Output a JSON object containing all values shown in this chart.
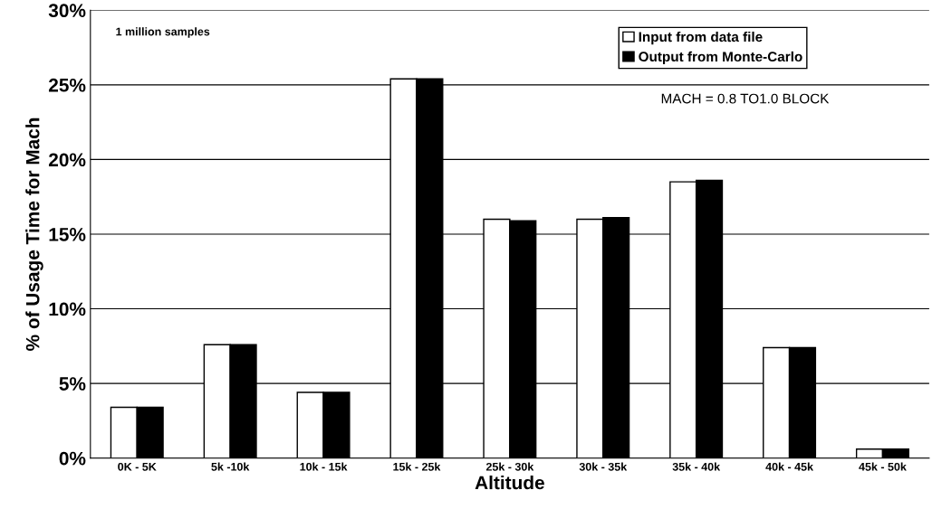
{
  "chart_data": {
    "type": "bar",
    "xlabel": "Altitude",
    "ylabel": "% of Usage Time for Mach",
    "categories": [
      "0K - 5K",
      "5k -10k",
      "10k - 15k",
      "15k - 25k",
      "25k - 30k",
      "30k - 35k",
      "35k - 40k",
      "40k - 45k",
      "45k - 50k"
    ],
    "series": [
      {
        "name": "Input from data file",
        "color": "#ffffff",
        "values": [
          3.4,
          7.6,
          4.4,
          25.4,
          16.0,
          16.0,
          18.5,
          7.4,
          0.6
        ]
      },
      {
        "name": "Output from Monte-Carlo",
        "color": "#000000",
        "values": [
          3.4,
          7.6,
          4.4,
          25.4,
          15.9,
          16.1,
          18.6,
          7.4,
          0.6
        ]
      }
    ],
    "ylim": [
      0,
      30
    ],
    "yticks": [
      {
        "value": 0,
        "label": "0%"
      },
      {
        "value": 5,
        "label": "5%"
      },
      {
        "value": 10,
        "label": "10%"
      },
      {
        "value": 15,
        "label": "15%"
      },
      {
        "value": 20,
        "label": "20%"
      },
      {
        "value": 25,
        "label": "25%"
      },
      {
        "value": 30,
        "label": "30%"
      }
    ],
    "grid": "y",
    "legend": "top right",
    "annotations": [
      "1 million samples",
      "MACH = 0.8 TO1.0 BLOCK"
    ]
  }
}
